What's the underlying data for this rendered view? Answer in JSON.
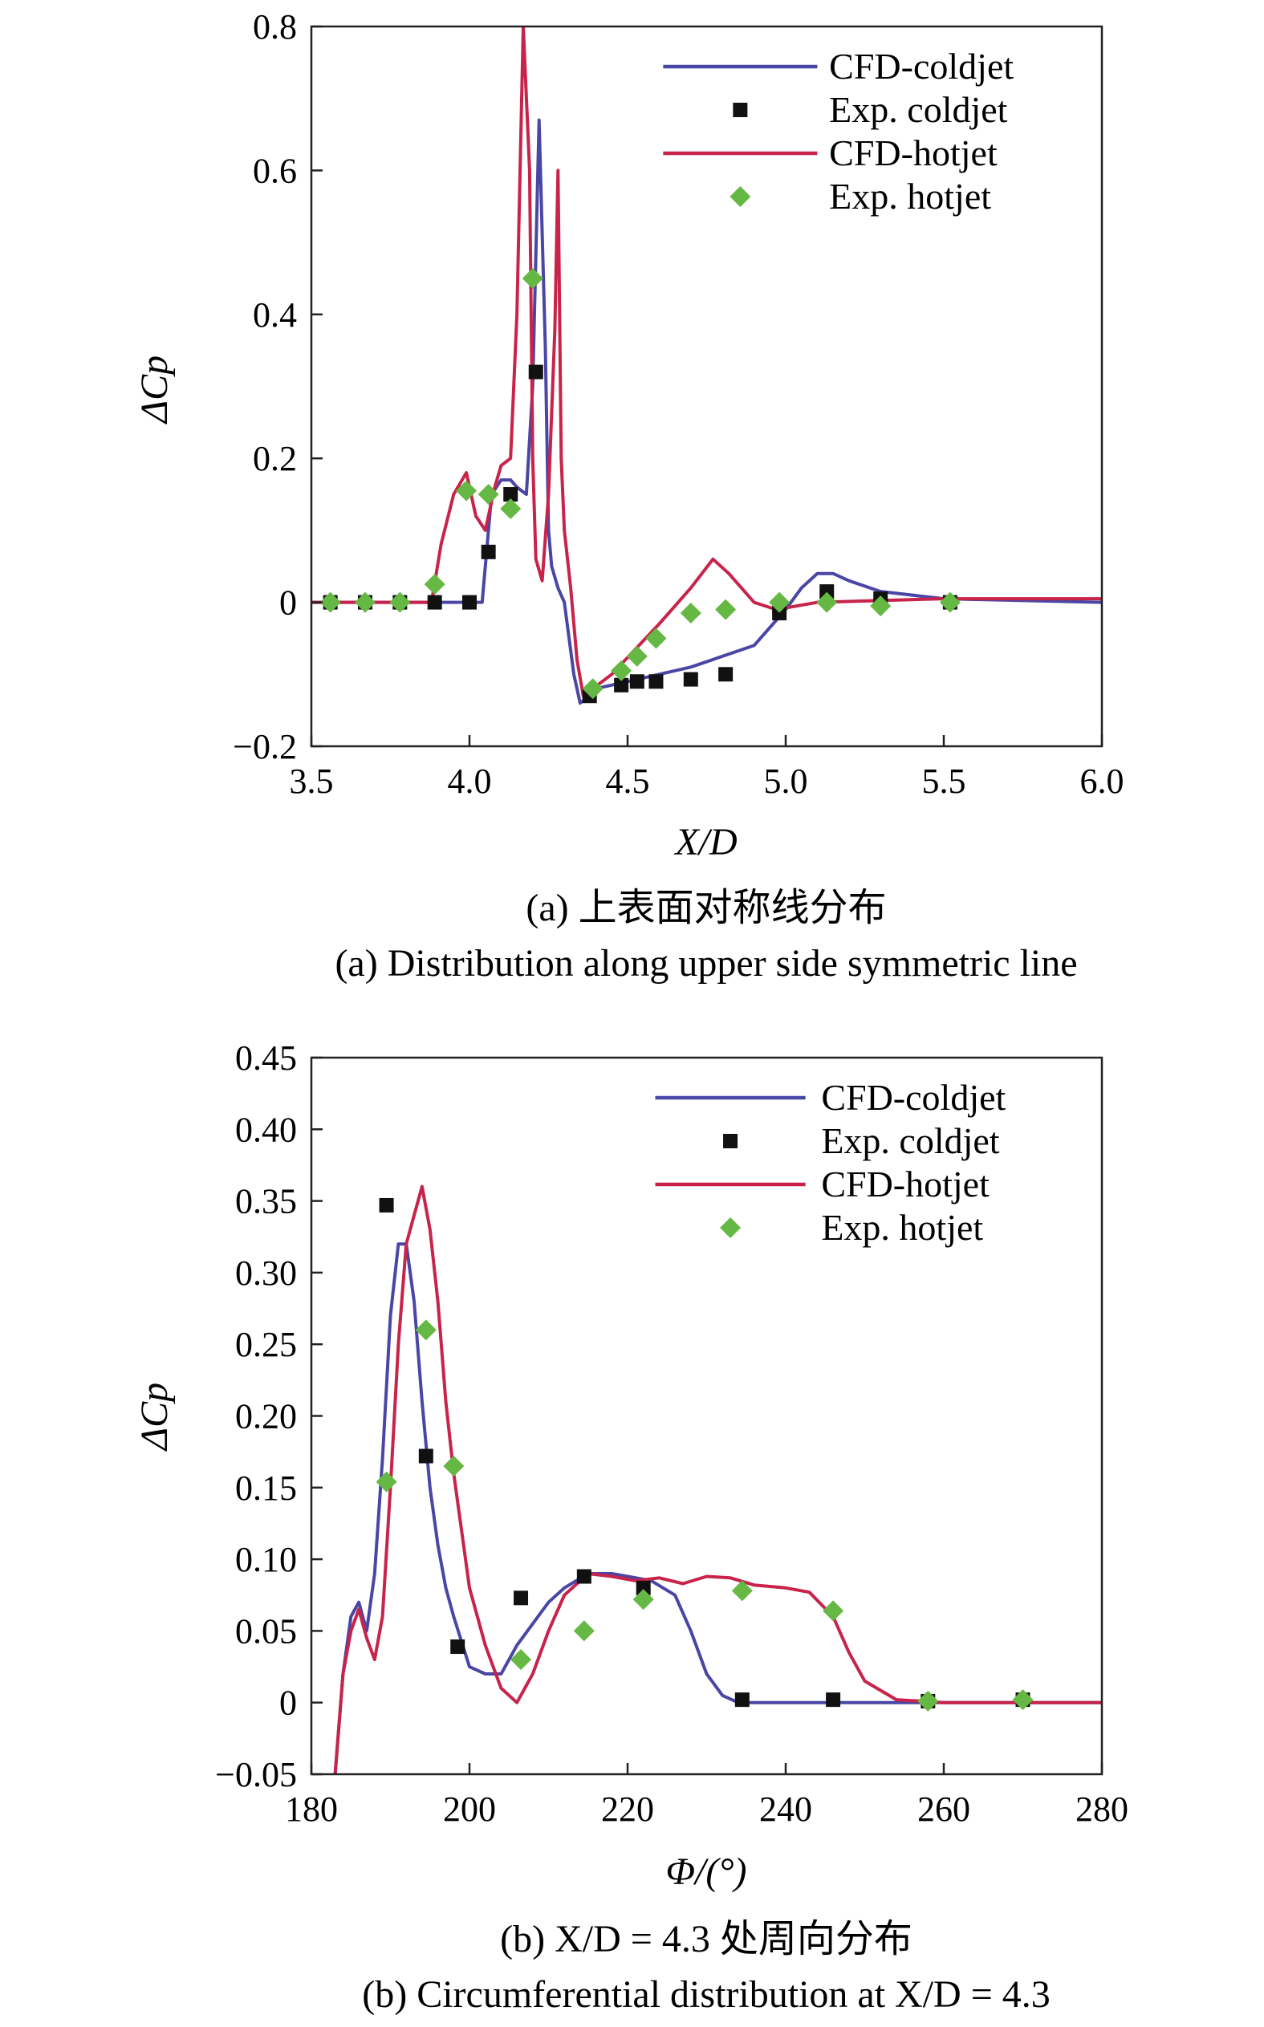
{
  "figure": {
    "captions": [
      {
        "zh": "(a) 上表面对称线分布",
        "en": "(a) Distribution along upper side symmetric line"
      },
      {
        "zh": "(b) X/D = 4.3 处周向分布",
        "en": "(b) Circumferential distribution at X/D = 4.3"
      }
    ]
  },
  "colors": {
    "cfd_cold": "#4a46a5",
    "cfd_hot": "#c8234a",
    "exp_cold": "#111111",
    "exp_hot": "#66b844",
    "axis": "#222222"
  },
  "chart_data": [
    {
      "type": "line",
      "xlabel": "X/D",
      "ylabel": "ΔCp",
      "xlim": [
        3.5,
        6.0
      ],
      "ylim": [
        -0.2,
        0.8
      ],
      "xticks": [
        3.5,
        4.0,
        4.5,
        5.0,
        5.5,
        6.0
      ],
      "xtick_labels": [
        "3.5",
        "4.0",
        "4.5",
        "5.0",
        "5.5",
        "6.0"
      ],
      "yticks": [
        -0.2,
        0,
        0.2,
        0.4,
        0.6,
        0.8
      ],
      "ytick_labels": [
        "−0.2",
        "0",
        "0.2",
        "0.4",
        "0.6",
        "0.8"
      ],
      "legend_position": "top-right",
      "series": [
        {
          "name": "CFD-coldjet",
          "kind": "line",
          "color": "#4a46a5",
          "x": [
            3.5,
            4.0,
            4.04,
            4.07,
            4.1,
            4.13,
            4.15,
            4.18,
            4.2,
            4.22,
            4.24,
            4.25,
            4.26,
            4.28,
            4.3,
            4.33,
            4.35,
            4.38,
            4.4,
            4.5,
            4.7,
            4.9,
            5.0,
            5.05,
            5.1,
            5.15,
            5.2,
            5.3,
            5.5,
            6.0
          ],
          "y": [
            0,
            0,
            0.0,
            0.15,
            0.17,
            0.17,
            0.16,
            0.15,
            0.3,
            0.67,
            0.35,
            0.1,
            0.05,
            0.02,
            0.0,
            -0.1,
            -0.14,
            -0.13,
            -0.12,
            -0.11,
            -0.09,
            -0.06,
            -0.01,
            0.02,
            0.04,
            0.04,
            0.03,
            0.015,
            0.005,
            0
          ]
        },
        {
          "name": "Exp. coldjet",
          "kind": "scatter",
          "marker": "square",
          "color": "#111111",
          "x": [
            3.56,
            3.67,
            3.78,
            3.89,
            4.0,
            4.06,
            4.13,
            4.21,
            4.38,
            4.48,
            4.53,
            4.59,
            4.7,
            4.81,
            4.98,
            5.13,
            5.3,
            5.52
          ],
          "y": [
            0,
            0,
            0,
            0,
            0,
            0.07,
            0.15,
            0.32,
            -0.13,
            -0.115,
            -0.11,
            -0.11,
            -0.107,
            -0.1,
            -0.015,
            0.015,
            0.005,
            0
          ]
        },
        {
          "name": "CFD-hotjet",
          "kind": "line",
          "color": "#c8234a",
          "x": [
            3.5,
            3.88,
            3.91,
            3.95,
            3.99,
            4.02,
            4.05,
            4.08,
            4.1,
            4.13,
            4.15,
            4.17,
            4.19,
            4.2,
            4.21,
            4.23,
            4.25,
            4.27,
            4.28,
            4.29,
            4.3,
            4.32,
            4.34,
            4.36,
            4.45,
            4.6,
            4.7,
            4.77,
            4.82,
            4.9,
            4.97,
            5.1,
            5.5,
            6.0
          ],
          "y": [
            0,
            0,
            0.08,
            0.15,
            0.18,
            0.12,
            0.1,
            0.16,
            0.19,
            0.2,
            0.4,
            0.8,
            0.6,
            0.2,
            0.06,
            0.03,
            0.15,
            0.38,
            0.6,
            0.2,
            0.1,
            0.02,
            -0.08,
            -0.13,
            -0.1,
            -0.03,
            0.02,
            0.06,
            0.04,
            0.0,
            -0.01,
            0.0,
            0.005,
            0.005
          ]
        },
        {
          "name": "Exp. hotjet",
          "kind": "scatter",
          "marker": "diamond",
          "color": "#66b844",
          "x": [
            3.56,
            3.67,
            3.78,
            3.89,
            3.99,
            4.06,
            4.13,
            4.2,
            4.39,
            4.48,
            4.53,
            4.59,
            4.7,
            4.81,
            4.98,
            5.13,
            5.3,
            5.52
          ],
          "y": [
            0,
            0,
            0,
            0.025,
            0.155,
            0.15,
            0.13,
            0.45,
            -0.12,
            -0.095,
            -0.075,
            -0.05,
            -0.015,
            -0.01,
            0.0,
            0.0,
            -0.005,
            0
          ]
        }
      ]
    },
    {
      "type": "line",
      "xlabel": "Φ/(°)",
      "ylabel": "ΔCp",
      "xlim": [
        180,
        280
      ],
      "ylim": [
        -0.05,
        0.45
      ],
      "xticks": [
        180,
        200,
        220,
        240,
        260,
        280
      ],
      "xtick_labels": [
        "180",
        "200",
        "220",
        "240",
        "260",
        "280"
      ],
      "yticks": [
        -0.05,
        0,
        0.05,
        0.1,
        0.15,
        0.2,
        0.25,
        0.3,
        0.35,
        0.4,
        0.45
      ],
      "ytick_labels": [
        "−0.05",
        "0",
        "0.05",
        "0.10",
        "0.15",
        "0.20",
        "0.25",
        "0.30",
        "0.35",
        "0.40",
        "0.45"
      ],
      "legend_position": "top-right",
      "series": [
        {
          "name": "CFD-coldjet",
          "kind": "line",
          "color": "#4a46a5",
          "x": [
            183,
            184,
            185,
            186,
            187,
            188,
            189,
            190,
            191,
            192,
            193,
            194,
            195,
            196,
            197,
            198,
            200,
            202,
            204,
            206,
            208,
            210,
            212,
            215,
            218,
            220,
            223,
            226,
            228,
            230,
            232,
            234,
            236,
            240,
            250,
            260,
            270,
            280
          ],
          "y": [
            -0.05,
            0.02,
            0.06,
            0.07,
            0.05,
            0.09,
            0.17,
            0.27,
            0.32,
            0.32,
            0.28,
            0.21,
            0.15,
            0.11,
            0.08,
            0.06,
            0.025,
            0.02,
            0.02,
            0.04,
            0.055,
            0.07,
            0.08,
            0.09,
            0.09,
            0.088,
            0.085,
            0.075,
            0.05,
            0.02,
            0.005,
            0,
            0,
            0,
            0,
            0,
            0,
            0
          ]
        },
        {
          "name": "Exp. coldjet",
          "kind": "scatter",
          "marker": "square",
          "color": "#111111",
          "x": [
            189.5,
            194.5,
            198.5,
            206.5,
            214.5,
            222,
            234.5,
            246,
            258,
            270
          ],
          "y": [
            0.347,
            0.172,
            0.039,
            0.073,
            0.088,
            0.08,
            0.002,
            0.002,
            0.001,
            0.002
          ]
        },
        {
          "name": "CFD-hotjet",
          "kind": "line",
          "color": "#c8234a",
          "x": [
            183,
            184,
            185,
            186,
            187,
            188,
            189,
            190,
            191,
            192,
            193,
            194,
            195,
            196,
            197,
            198,
            200,
            202,
            204,
            206,
            208,
            210,
            212,
            215,
            218,
            221,
            224,
            227,
            230,
            233,
            236,
            240,
            243,
            246,
            248,
            250,
            254,
            260,
            270,
            280
          ],
          "y": [
            -0.05,
            0.02,
            0.05,
            0.065,
            0.045,
            0.03,
            0.06,
            0.15,
            0.25,
            0.32,
            0.34,
            0.36,
            0.33,
            0.28,
            0.21,
            0.16,
            0.08,
            0.04,
            0.01,
            0.0,
            0.02,
            0.05,
            0.075,
            0.09,
            0.088,
            0.085,
            0.087,
            0.083,
            0.088,
            0.087,
            0.082,
            0.08,
            0.077,
            0.06,
            0.035,
            0.015,
            0.002,
            0,
            0,
            0
          ]
        },
        {
          "name": "Exp. hotjet",
          "kind": "scatter",
          "marker": "diamond",
          "color": "#66b844",
          "x": [
            189.5,
            194.5,
            198,
            206.5,
            214.5,
            222,
            234.5,
            246,
            258,
            270
          ],
          "y": [
            0.154,
            0.26,
            0.165,
            0.03,
            0.05,
            0.072,
            0.078,
            0.064,
            0.001,
            0.002
          ]
        }
      ]
    }
  ]
}
